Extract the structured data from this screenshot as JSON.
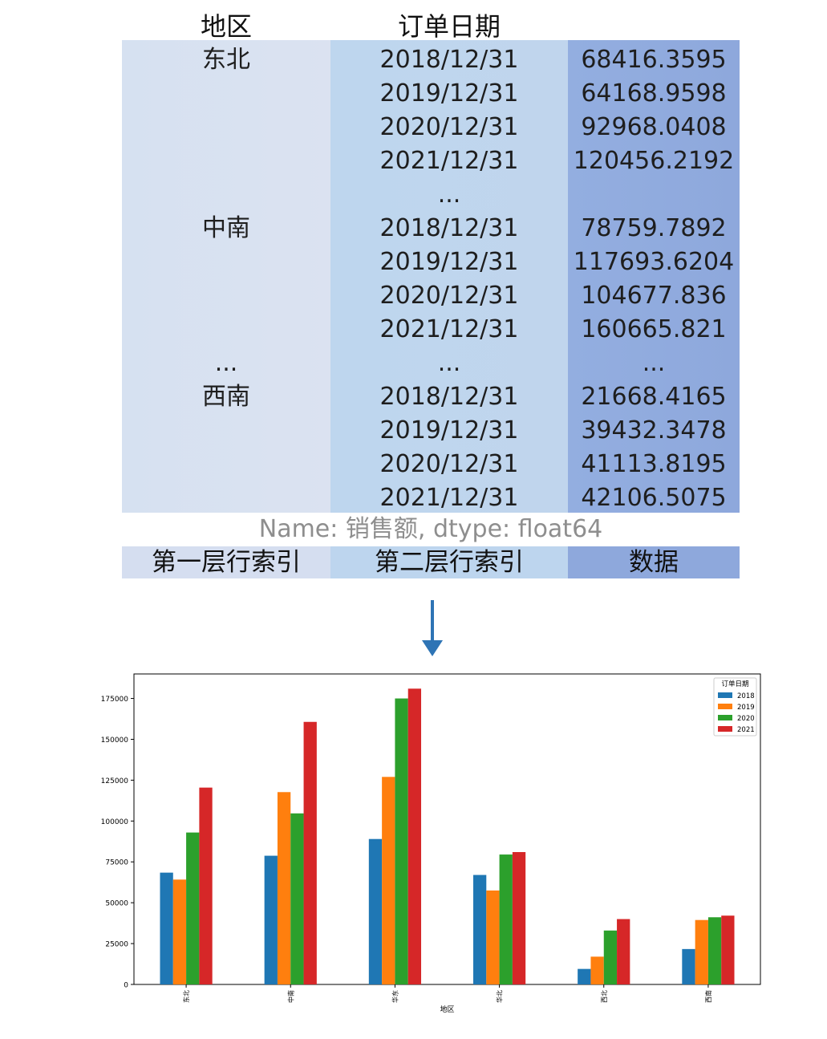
{
  "table": {
    "headers": [
      "地区",
      "订单日期"
    ],
    "rows": [
      {
        "region": "东北",
        "date": "2018/12/31",
        "value": "68416.3595"
      },
      {
        "region": "",
        "date": "2019/12/31",
        "value": "64168.9598"
      },
      {
        "region": "",
        "date": "2020/12/31",
        "value": "92968.0408"
      },
      {
        "region": "",
        "date": "2021/12/31",
        "value": "120456.2192"
      },
      {
        "region": "",
        "date": "...",
        "value": ""
      },
      {
        "region": "中南",
        "date": "2018/12/31",
        "value": "78759.7892"
      },
      {
        "region": "",
        "date": "2019/12/31",
        "value": "117693.6204"
      },
      {
        "region": "",
        "date": "2020/12/31",
        "value": "104677.836"
      },
      {
        "region": "",
        "date": "2021/12/31",
        "value": "160665.821"
      },
      {
        "region": "...",
        "date": "...",
        "value": "..."
      },
      {
        "region": "西南",
        "date": "2018/12/31",
        "value": "21668.4165"
      },
      {
        "region": "",
        "date": "2019/12/31",
        "value": "39432.3478"
      },
      {
        "region": "",
        "date": "2020/12/31",
        "value": "41113.8195"
      },
      {
        "region": "",
        "date": "2021/12/31",
        "value": "42106.5075"
      }
    ],
    "name_line": "Name: 销售额, dtype: float64",
    "labels": [
      "第一层行索引",
      "第二层行索引",
      "数据"
    ]
  },
  "colors": {
    "2018": "#1f77b4",
    "2019": "#ff7f0e",
    "2020": "#2ca02c",
    "2021": "#d62728",
    "arrow": "#2e74b5"
  },
  "chart_data": {
    "type": "bar",
    "xlabel": "地区",
    "ylabel": "",
    "ylim": [
      0,
      190000
    ],
    "yticks": [
      0,
      25000,
      50000,
      75000,
      100000,
      125000,
      150000,
      175000
    ],
    "categories": [
      "东北",
      "中南",
      "华东",
      "华北",
      "西北",
      "西南"
    ],
    "legend_title": "订单日期",
    "legend_position": "top-right",
    "grid": false,
    "series": [
      {
        "name": "2018",
        "values": [
          68416.3595,
          78759.7892,
          89000,
          67000,
          9500,
          21668.4165
        ]
      },
      {
        "name": "2019",
        "values": [
          64168.9598,
          117693.6204,
          127000,
          57500,
          17000,
          39432.3478
        ]
      },
      {
        "name": "2020",
        "values": [
          92968.0408,
          104677.836,
          175000,
          79500,
          33000,
          41113.8195
        ]
      },
      {
        "name": "2021",
        "values": [
          120456.2192,
          160665.821,
          181000,
          81000,
          40000,
          42106.5075
        ]
      }
    ]
  }
}
